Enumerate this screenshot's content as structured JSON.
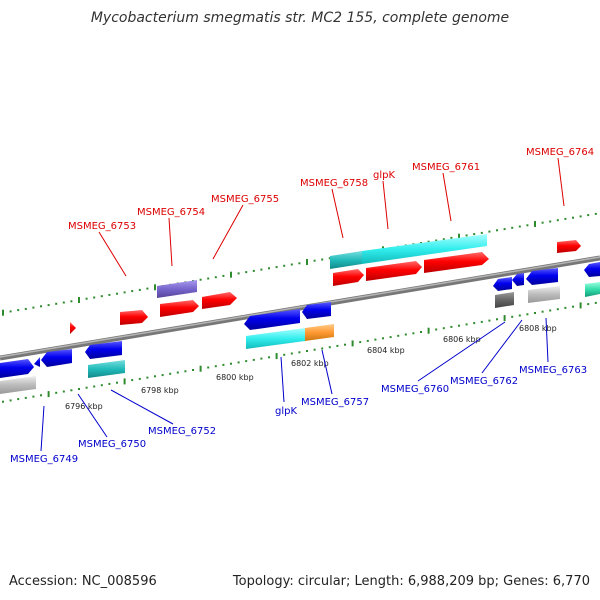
{
  "title": "Mycobacterium smegmatis str. MC2 155, complete genome",
  "footer": {
    "accession": "Accession: NC_008596",
    "info": "Topology: circular; Length: 6,988,209 bp; Genes: 6,770"
  },
  "scale_labels": [
    "6796 kbp",
    "6798 kbp",
    "6800 kbp",
    "6802 kbp",
    "6804 kbp",
    "6806 kbp",
    "6808 kbp"
  ],
  "forward_gene_labels": [
    "MSMEG_6753",
    "MSMEG_6754",
    "MSMEG_6755",
    "MSMEG_6758",
    "glpK",
    "MSMEG_6761",
    "MSMEG_6764"
  ],
  "reverse_gene_labels": [
    "MSMEG_6749",
    "MSMEG_6750",
    "MSMEG_6752",
    "glpK",
    "MSMEG_6757",
    "MSMEG_6760",
    "MSMEG_6762",
    "MSMEG_6763"
  ],
  "colors": {
    "backbone": "#888888",
    "forward_gene": "#ff0000",
    "reverse_gene": "#0000ee",
    "forward_label": "#dd0000",
    "reverse_label": "#0000cc",
    "tick": "#2e8b2e",
    "cds_cyan": "#33eeee",
    "cds_teal": "#22bbbb",
    "cds_purple": "#7766cc",
    "cds_orange": "#ff9933",
    "cds_gray": "#bbbbbb",
    "cds_dark_gray": "#666666",
    "cds_mint": "#33ddaa"
  }
}
